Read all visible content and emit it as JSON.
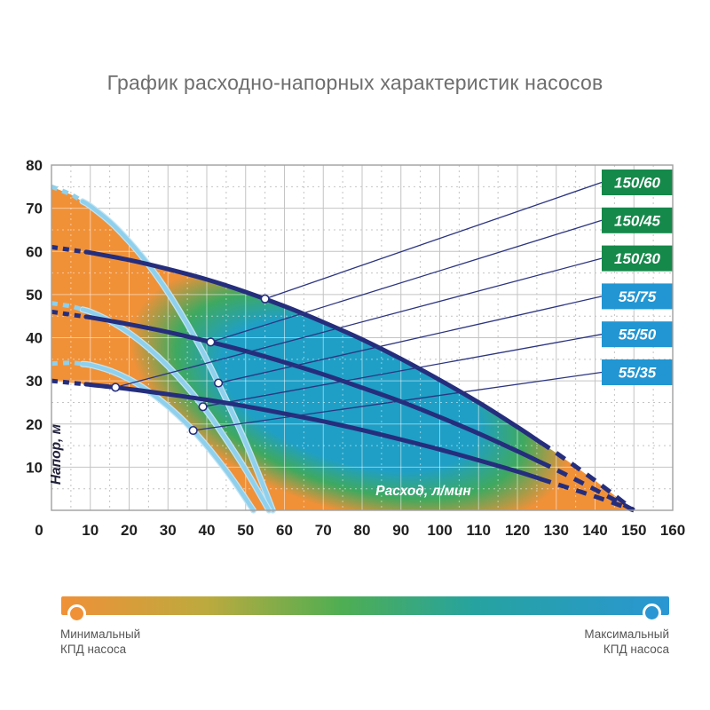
{
  "chart_data": {
    "type": "line",
    "title": "График расходно-напорных характеристик насосов",
    "xlabel": "Расход, л/мин",
    "ylabel": "Напор, м",
    "xlim": [
      0,
      160
    ],
    "ylim": [
      0,
      80
    ],
    "x_ticks": [
      0,
      10,
      20,
      30,
      40,
      50,
      60,
      70,
      80,
      90,
      100,
      110,
      120,
      130,
      140,
      150,
      160
    ],
    "y_ticks": [
      10,
      20,
      30,
      40,
      50,
      60,
      70,
      80
    ],
    "grid": true,
    "legend_position": "right-inside",
    "series": [
      {
        "name": "150/60",
        "family": "150",
        "label_bg": "#15894a",
        "points": [
          [
            0,
            61
          ],
          [
            10,
            59.7
          ],
          [
            20,
            58
          ],
          [
            30,
            55.9
          ],
          [
            40,
            53.5
          ],
          [
            50,
            50.6
          ],
          [
            60,
            47.3
          ],
          [
            70,
            43.6
          ],
          [
            80,
            39.6
          ],
          [
            90,
            35.1
          ],
          [
            100,
            30.2
          ],
          [
            110,
            25
          ],
          [
            120,
            19.3
          ],
          [
            130,
            13.3
          ],
          [
            140,
            6.9
          ],
          [
            150,
            0
          ]
        ],
        "marker": [
          55,
          49
        ]
      },
      {
        "name": "150/45",
        "family": "150",
        "label_bg": "#15894a",
        "points": [
          [
            0,
            46
          ],
          [
            10,
            44.7
          ],
          [
            20,
            43.1
          ],
          [
            30,
            41.3
          ],
          [
            40,
            39.2
          ],
          [
            50,
            36.9
          ],
          [
            60,
            34.3
          ],
          [
            70,
            31.5
          ],
          [
            80,
            28.4
          ],
          [
            90,
            25.2
          ],
          [
            100,
            21.6
          ],
          [
            110,
            17.8
          ],
          [
            120,
            13.7
          ],
          [
            130,
            9.4
          ],
          [
            140,
            4.8
          ],
          [
            150,
            0
          ]
        ],
        "marker": [
          41,
          39
        ]
      },
      {
        "name": "150/30",
        "family": "150",
        "label_bg": "#15894a",
        "points": [
          [
            0,
            30
          ],
          [
            10,
            29.1
          ],
          [
            20,
            28.1
          ],
          [
            30,
            26.9
          ],
          [
            40,
            25.6
          ],
          [
            50,
            24.1
          ],
          [
            60,
            22.4
          ],
          [
            70,
            20.6
          ],
          [
            80,
            18.6
          ],
          [
            90,
            16.4
          ],
          [
            100,
            14.1
          ],
          [
            110,
            11.6
          ],
          [
            120,
            9
          ],
          [
            130,
            6.1
          ],
          [
            140,
            3.2
          ],
          [
            150,
            0
          ]
        ],
        "marker": [
          16.5,
          28.5
        ]
      },
      {
        "name": "55/75",
        "family": "55",
        "label_bg": "#2196d3",
        "points": [
          [
            0,
            75
          ],
          [
            5,
            73.2
          ],
          [
            10,
            70.5
          ],
          [
            15,
            66.9
          ],
          [
            20,
            62.3
          ],
          [
            25,
            56.9
          ],
          [
            30,
            50.5
          ],
          [
            35,
            43.1
          ],
          [
            40,
            34.9
          ],
          [
            45,
            25.6
          ],
          [
            50,
            15.7
          ],
          [
            54,
            6.9
          ],
          [
            57,
            0
          ]
        ],
        "marker": [
          43,
          29.5
        ]
      },
      {
        "name": "55/50",
        "family": "55",
        "label_bg": "#2196d3",
        "points": [
          [
            0,
            48
          ],
          [
            5,
            47.3
          ],
          [
            10,
            46
          ],
          [
            15,
            43.9
          ],
          [
            20,
            41.1
          ],
          [
            25,
            37.6
          ],
          [
            30,
            33.4
          ],
          [
            35,
            28.5
          ],
          [
            40,
            22.9
          ],
          [
            45,
            16.4
          ],
          [
            50,
            9.4
          ],
          [
            56,
            0
          ]
        ],
        "marker": [
          39,
          24
        ]
      },
      {
        "name": "55/35",
        "family": "55",
        "label_bg": "#2196d3",
        "points": [
          [
            0,
            34
          ],
          [
            5,
            34.2
          ],
          [
            10,
            33.7
          ],
          [
            15,
            32.4
          ],
          [
            20,
            30.4
          ],
          [
            25,
            27.6
          ],
          [
            30,
            24.1
          ],
          [
            35,
            19.9
          ],
          [
            40,
            14.9
          ],
          [
            45,
            9.2
          ],
          [
            48,
            5.4
          ],
          [
            52,
            0
          ]
        ],
        "marker": [
          36.5,
          18.5
        ]
      }
    ],
    "efficiency_region": [
      [
        0,
        75
      ],
      [
        5,
        73.2
      ],
      [
        10,
        70.5
      ],
      [
        15,
        66.9
      ],
      [
        20,
        62.3
      ],
      [
        25,
        56.9
      ],
      [
        30,
        55.9
      ],
      [
        40,
        53.5
      ],
      [
        50,
        50.6
      ],
      [
        60,
        47.3
      ],
      [
        70,
        43.6
      ],
      [
        80,
        39.6
      ],
      [
        90,
        35.1
      ],
      [
        100,
        30.2
      ],
      [
        110,
        25
      ],
      [
        120,
        19.3
      ],
      [
        130,
        13.3
      ],
      [
        140,
        6.9
      ],
      [
        150,
        0
      ],
      [
        52,
        0
      ],
      [
        48,
        5.4
      ],
      [
        45,
        9.2
      ],
      [
        40,
        14.9
      ],
      [
        36.5,
        18.5
      ],
      [
        30,
        24.1
      ],
      [
        25,
        27.6
      ],
      [
        20,
        28.1
      ],
      [
        15,
        28.7
      ],
      [
        10,
        29.1
      ],
      [
        5,
        29.6
      ],
      [
        0,
        30
      ]
    ],
    "colors": {
      "curve_150": "#252e7d",
      "curve_55": "#8fd0ec",
      "curve_55_halo": "#c2e4f4",
      "zone_core": "#1f9fc6",
      "zone_mid": "#3fa95f",
      "zone_edge": "#f09138",
      "label_green": "#15894a",
      "label_blue": "#2196d3"
    }
  },
  "efficiency_legend": {
    "min_label_lines": [
      "Минимальный",
      "КПД насоса"
    ],
    "max_label_lines": [
      "Максимальный",
      "КПД насоса"
    ],
    "gradient": [
      "#f09138",
      "#bcaa3e",
      "#4fae52",
      "#26a3a0",
      "#2a96d3"
    ]
  }
}
